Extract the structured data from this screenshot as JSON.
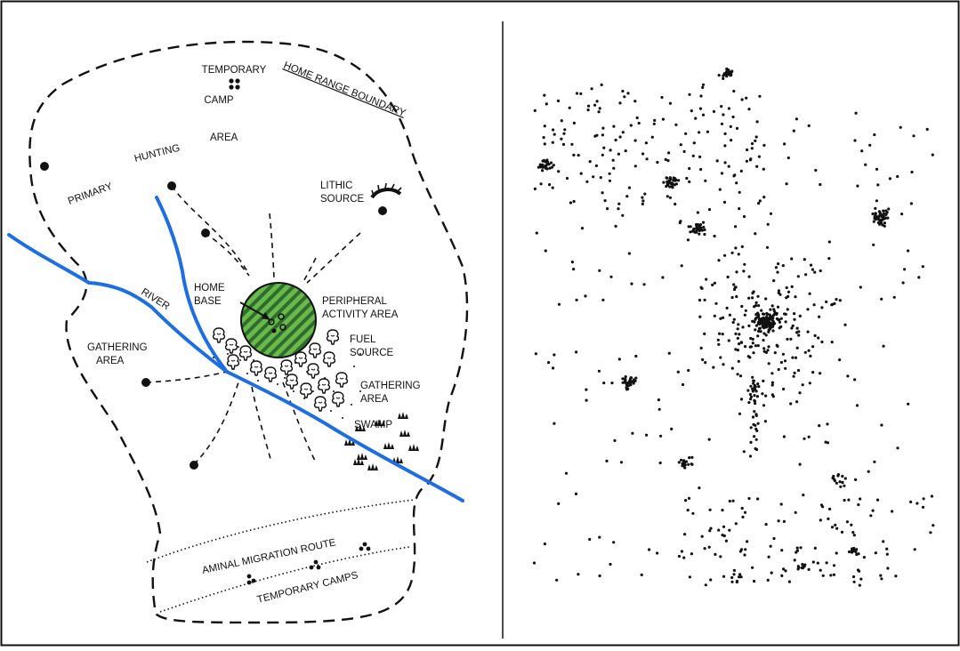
{
  "labels": {
    "temporary": "TEMPORARY",
    "camp": "CAMP",
    "home_range_boundary": "HOME RANGE BOUNDARY",
    "primary": "PRIMARY",
    "hunting": "HUNTING",
    "area": "AREA",
    "lithic": "LITHIC",
    "source": "SOURCE",
    "home": "HOME",
    "base": "BASE",
    "peripheral": "PERIPHERAL",
    "activity_area": "ACTIVITY AREA",
    "river": "RIVER",
    "gathering": "GATHERING",
    "fuel": "FUEL",
    "swamp": "SWAMP",
    "migration_route": "AMINAL MIGRATION ROUTE",
    "temporary_camps": "TEMPORARY CAMPS"
  },
  "colors": {
    "river": "#1f6ee0",
    "home_base_fill": "#6ab84e",
    "home_base_stripe": "#2f6e2a",
    "ink": "#111111"
  }
}
